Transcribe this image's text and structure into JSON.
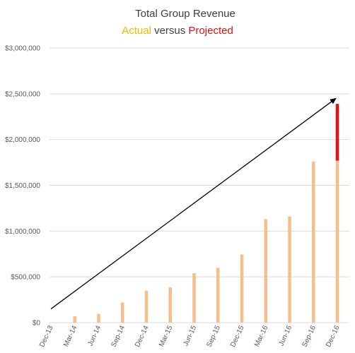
{
  "chart_data": {
    "type": "bar",
    "title": "Total Group Revenue",
    "subtitle": {
      "actual_label": "Actual",
      "connector": " versus ",
      "projected_label": "Projected"
    },
    "categories": [
      "Dec-13",
      "Mar-14",
      "Jun-14",
      "Sep-14",
      "Dec-14",
      "Mar-15",
      "Jun-15",
      "Sep-15",
      "Dec-15",
      "Mar-16",
      "Jun-16",
      "Sep-16",
      "Dec-16"
    ],
    "y_ticks": [
      "$0",
      "$500,000",
      "$1,000,000",
      "$1,500,000",
      "$2,000,000",
      "$2,500,000",
      "$3,000,000"
    ],
    "ylim": [
      0,
      3000000
    ],
    "grid": true,
    "series": [
      {
        "name": "Actual",
        "color": "#F4BF8C",
        "values": [
          0,
          70000,
          95000,
          220000,
          350000,
          385000,
          540000,
          600000,
          745000,
          1130000,
          1160000,
          1760000,
          1770000
        ]
      },
      {
        "name": "Projected",
        "color": "#E81010",
        "values": [
          0,
          0,
          0,
          0,
          0,
          0,
          0,
          0,
          0,
          0,
          0,
          0,
          620000
        ]
      }
    ],
    "trend_arrow": {
      "color": "#000000",
      "from": {
        "category": "Dec-13",
        "y": 150000
      },
      "to": {
        "category": "Dec-16",
        "y": 2450000
      }
    },
    "colors": {
      "title": "#404040",
      "actual_text": "#F2B800",
      "projected_text": "#E81010"
    }
  }
}
